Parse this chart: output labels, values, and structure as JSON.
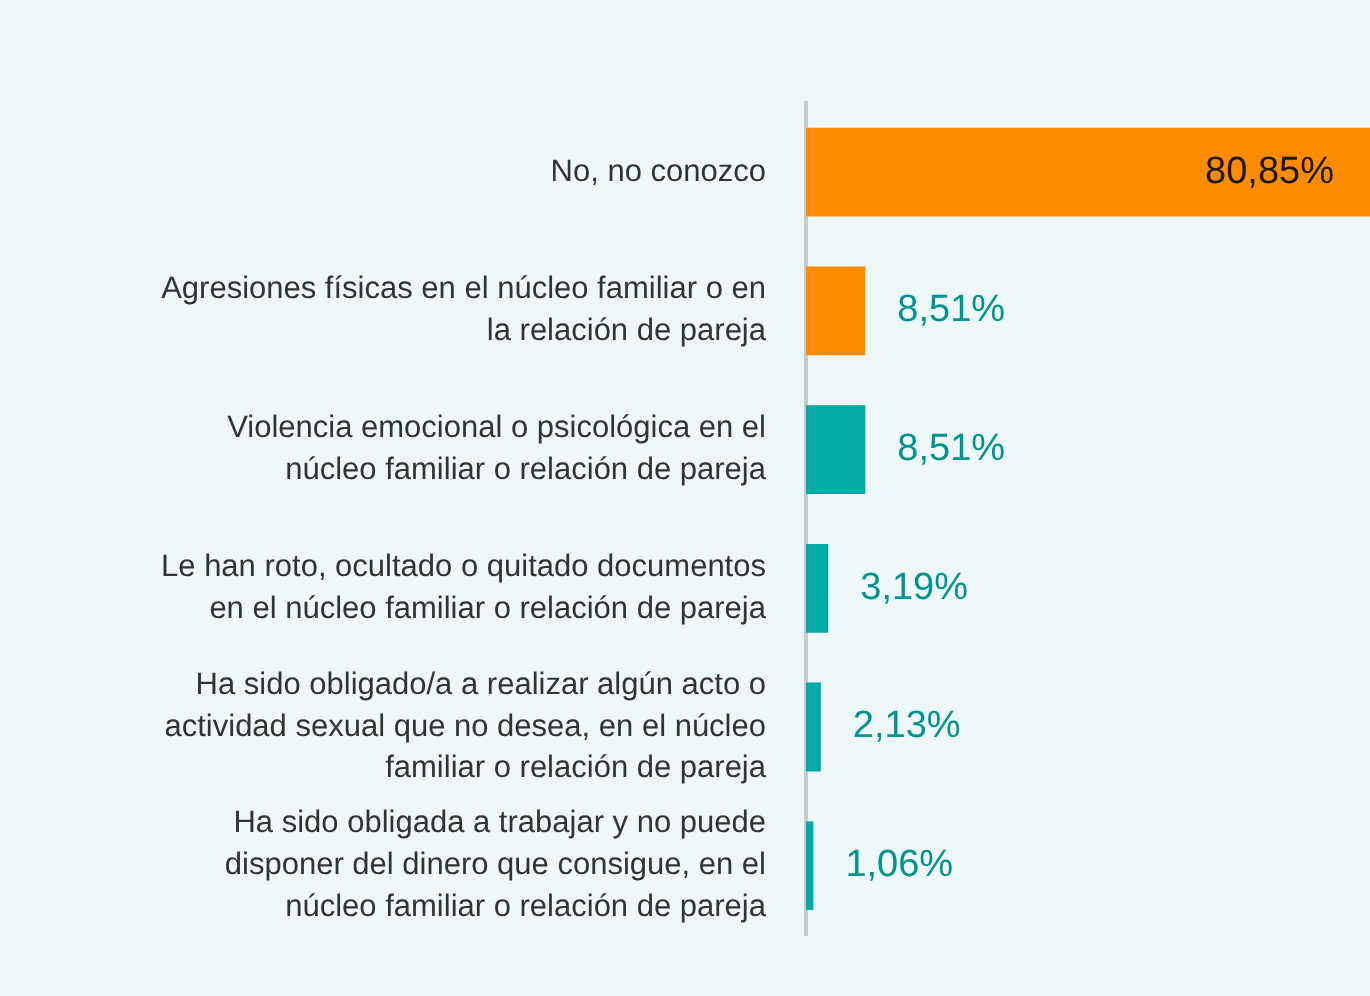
{
  "chart_data": {
    "type": "bar",
    "orientation": "horizontal",
    "categories": [
      "No, no conozco",
      "Agresiones físicas en el núcleo familiar o en\nla relación de pareja",
      "Violencia emocional o psicológica en el\nnúcleo familiar o relación de pareja",
      "Le han roto, ocultado o quitado documentos\nen el núcleo familiar o relación de pareja",
      "Ha sido obligado/a a realizar algún acto o\nactividad sexual que no desea, en el núcleo\nfamiliar o relación de pareja",
      "Ha sido obligada a trabajar y no puede\ndisponer del dinero que consigue, en el\nnúcleo familiar o relación de pareja"
    ],
    "values": [
      80.85,
      8.51,
      8.51,
      3.19,
      2.13,
      1.06
    ],
    "colors": [
      "#ff8c00",
      "#ff8c00",
      "#00aaa6",
      "#00aaa6",
      "#00aaa6",
      "#00aaa6"
    ],
    "value_labels": [
      "80,85%",
      "8,51%",
      "8,51%",
      "3,19%",
      "2,13%",
      "1,06%"
    ],
    "grid": false,
    "legend": false
  }
}
